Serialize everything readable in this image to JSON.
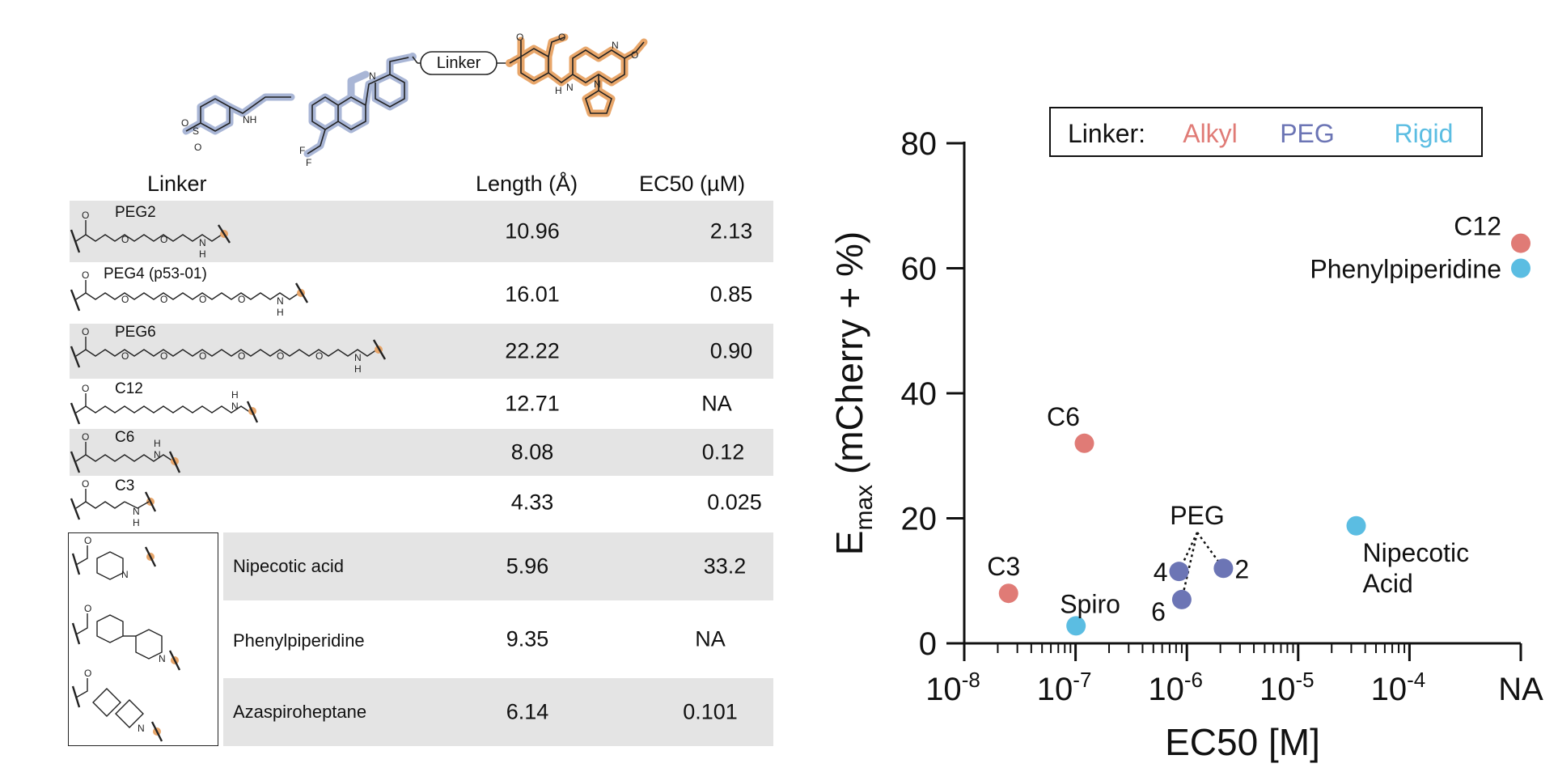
{
  "molecule": {
    "linker_box_label": "Linker"
  },
  "table": {
    "headers": {
      "linker": "Linker",
      "length": "Length (Å)",
      "ec50": "EC50 (µM)"
    },
    "rows": [
      {
        "label": "PEG2",
        "length": "10.96",
        "ec50": "2.13"
      },
      {
        "label": "PEG4 (p53-01)",
        "length": "16.01",
        "ec50": "0.85"
      },
      {
        "label": "PEG6",
        "length": "22.22",
        "ec50": "0.90"
      },
      {
        "label": "C12",
        "length": "12.71",
        "ec50": "NA"
      },
      {
        "label": "C6",
        "length": "8.08",
        "ec50": "0.12"
      },
      {
        "label": "C3",
        "length": "4.33",
        "ec50": "0.025"
      },
      {
        "label": "Nipecotic acid",
        "length": "5.96",
        "ec50": "33.2"
      },
      {
        "label": "Phenylpiperidine",
        "length": "9.35",
        "ec50": "NA"
      },
      {
        "label": "Azaspiroheptane",
        "length": "6.14",
        "ec50": "0.101"
      }
    ]
  },
  "chart_data": {
    "type": "scatter",
    "xlabel": "EC50 [M]",
    "ylabel_main": "E",
    "ylabel_sub": "max",
    "ylabel_rest": " (mCherry + %)",
    "x_scale": "log",
    "x_ticks": [
      {
        "base": "10",
        "exp": "-8"
      },
      {
        "base": "10",
        "exp": "-7"
      },
      {
        "base": "10",
        "exp": "-6"
      },
      {
        "base": "10",
        "exp": "-5"
      },
      {
        "base": "10",
        "exp": "-4"
      },
      {
        "base": "NA",
        "exp": ""
      }
    ],
    "x_range": [
      1e-08,
      0.001
    ],
    "y_ticks": [
      "0",
      "20",
      "40",
      "60",
      "80"
    ],
    "ylim": [
      0,
      80
    ],
    "legend": {
      "title": "Linker:",
      "position": "top-right",
      "entries": [
        {
          "name": "Alkyl",
          "color": "#e07b76"
        },
        {
          "name": "PEG",
          "color": "#6c75b5"
        },
        {
          "name": "Rigid",
          "color": "#5bbde2"
        }
      ]
    },
    "points": [
      {
        "label": "C3",
        "series": "Alkyl",
        "x": 2.5e-08,
        "y": 8
      },
      {
        "label": "C6",
        "series": "Alkyl",
        "x": 1.2e-07,
        "y": 32
      },
      {
        "label": "C12",
        "series": "Alkyl",
        "x": "NA",
        "y": 64
      },
      {
        "label": "2",
        "series": "PEG",
        "x": 2.13e-06,
        "y": 12
      },
      {
        "label": "4",
        "series": "PEG",
        "x": 8.5e-07,
        "y": 11.5
      },
      {
        "label": "6",
        "series": "PEG",
        "x": 9e-07,
        "y": 7
      },
      {
        "label": "Spiro",
        "series": "Rigid",
        "x": 1.01e-07,
        "y": 2.8
      },
      {
        "label": "Nipecotic Acid",
        "series": "Rigid",
        "x": 3.32e-05,
        "y": 18.8
      },
      {
        "label": "Phenylpiperidine",
        "series": "Rigid",
        "x": "NA",
        "y": 60
      }
    ],
    "annotations": {
      "peg_group": "PEG"
    }
  }
}
